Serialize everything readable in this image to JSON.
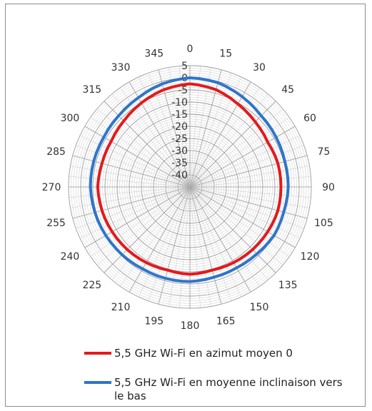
{
  "chart_data": {
    "type": "polar-line",
    "angle_ticks": [
      "0",
      "15",
      "30",
      "45",
      "60",
      "75",
      "90",
      "105",
      "120",
      "135",
      "150",
      "165",
      "180",
      "195",
      "210",
      "225",
      "240",
      "255",
      "270",
      "285",
      "300",
      "315",
      "330",
      "345"
    ],
    "radial_ticks": [
      "5",
      "0",
      "-5",
      "-10",
      "-15",
      "-20",
      "-25",
      "-30",
      "-35",
      "-40"
    ],
    "rlim": [
      -45,
      5
    ],
    "grid": true,
    "legend_position": "bottom",
    "series": [
      {
        "name": "5,5 GHz Wi-Fi en azimut moyen 0",
        "color": "#e31a1c",
        "angles": [
          0,
          15,
          30,
          45,
          60,
          75,
          90,
          105,
          120,
          135,
          150,
          165,
          180,
          195,
          210,
          225,
          240,
          255,
          270,
          285,
          300,
          315,
          330,
          345
        ],
        "values": [
          -2.5,
          -3.5,
          -5.5,
          -7,
          -8,
          -7.5,
          -7.5,
          -7.5,
          -8,
          -8.5,
          -9,
          -9.5,
          -9,
          -9.5,
          -9,
          -8.5,
          -8,
          -7.5,
          -7,
          -7.5,
          -7.5,
          -6.5,
          -5,
          -3.5
        ]
      },
      {
        "name": "5,5 GHz Wi-Fi en moyenne inclinaison vers le bas",
        "color": "#2e75c9",
        "angles": [
          0,
          15,
          30,
          45,
          60,
          75,
          90,
          105,
          120,
          135,
          150,
          165,
          180,
          195,
          210,
          225,
          240,
          255,
          270,
          285,
          300,
          315,
          330,
          345
        ],
        "values": [
          0,
          -0.5,
          -2,
          -3.5,
          -4,
          -4.5,
          -4.5,
          -5,
          -5,
          -6,
          -6.5,
          -6.5,
          -6,
          -6,
          -6,
          -5.5,
          -5,
          -4.5,
          -4,
          -4,
          -4,
          -3.5,
          -2.5,
          -1
        ]
      }
    ]
  }
}
